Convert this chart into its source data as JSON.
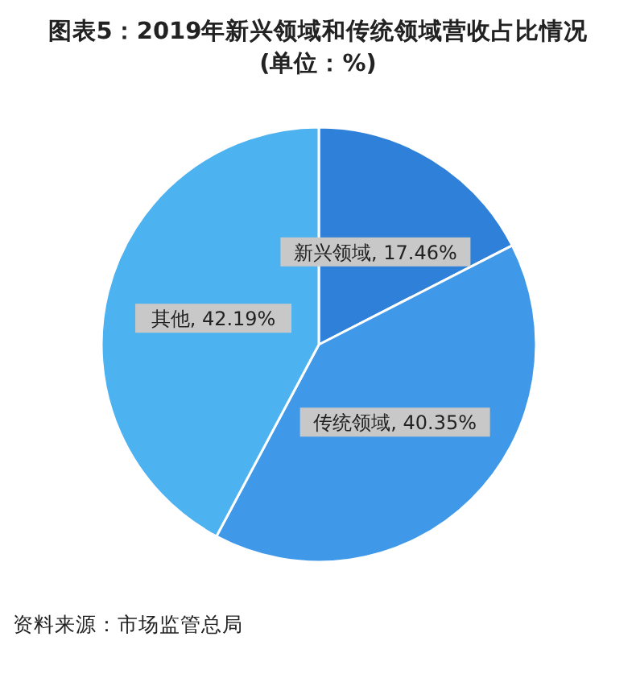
{
  "chart_data": {
    "type": "pie",
    "title": "图表5：2019年新兴领域和传统领域营收占比情况",
    "subtitle": "(单位：%)",
    "categories": [
      "新兴领域",
      "传统领域",
      "其他"
    ],
    "values": [
      17.46,
      40.35,
      42.19
    ],
    "colors": [
      "#2f80d9",
      "#3f98e8",
      "#4db2f0"
    ],
    "value_labels": [
      "17.46%",
      "40.35%",
      "42.19%"
    ],
    "annotations": [
      "资料来源：市场监管总局"
    ]
  }
}
